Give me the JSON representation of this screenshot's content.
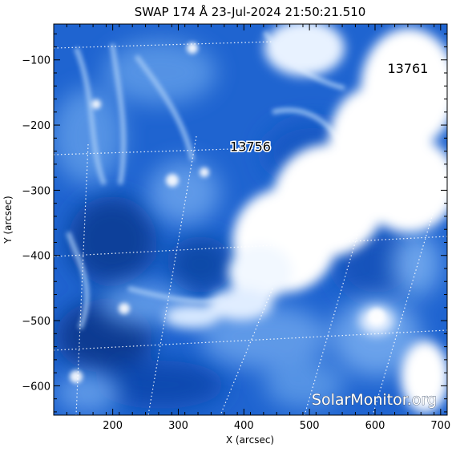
{
  "title": "SWAP 174 Å 23-Jul-2024 21:50:21.510",
  "x_axis": {
    "label": "X (arcsec)",
    "range": [
      110,
      710
    ],
    "ticks": [
      {
        "value": 200,
        "label": "200"
      },
      {
        "value": 300,
        "label": "300"
      },
      {
        "value": 400,
        "label": "400"
      },
      {
        "value": 500,
        "label": "500"
      },
      {
        "value": 600,
        "label": "600"
      },
      {
        "value": 700,
        "label": "700"
      }
    ]
  },
  "y_axis": {
    "label": "Y (arcsec)",
    "range": [
      -645,
      -45
    ],
    "ticks": [
      {
        "value": -100,
        "label": "−100"
      },
      {
        "value": -200,
        "label": "−200"
      },
      {
        "value": -300,
        "label": "−300"
      },
      {
        "value": -400,
        "label": "−400"
      },
      {
        "value": -500,
        "label": "−500"
      },
      {
        "value": -600,
        "label": "−600"
      }
    ]
  },
  "active_regions": [
    {
      "id": "13761",
      "x": 650,
      "y": -120
    },
    {
      "id": "13756",
      "x": 410,
      "y": -240
    }
  ],
  "credit": "SolarMonitor.org",
  "colors": {
    "background_blue": "#1f64d0",
    "deep_blue": "#0e3f9a",
    "bright_emission": "#ffffff",
    "grid_line": "#ffffff"
  },
  "grid": "dotted heliographic grid"
}
